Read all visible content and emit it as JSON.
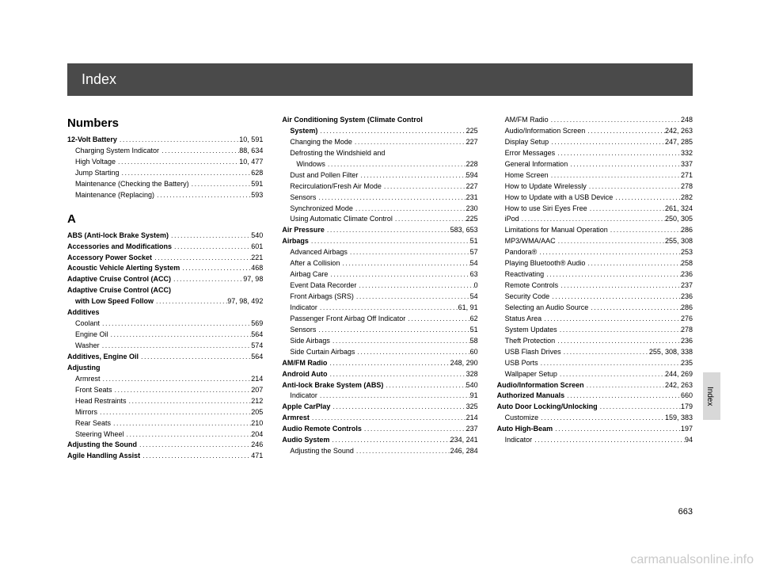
{
  "header": {
    "title": "Index"
  },
  "sideTab": "Index",
  "pageNumber": "663",
  "watermark": "carmanualsonline.info",
  "columns": [
    {
      "blocks": [
        {
          "heading": "Numbers",
          "entries": [
            {
              "label": "12-Volt Battery",
              "bold": true,
              "sub": false,
              "pages": "10, 591"
            },
            {
              "label": "Charging System Indicator",
              "bold": false,
              "sub": true,
              "pages": "88, 634"
            },
            {
              "label": "High Voltage",
              "bold": false,
              "sub": true,
              "pages": "10, 477"
            },
            {
              "label": "Jump Starting",
              "bold": false,
              "sub": true,
              "pages": "628"
            },
            {
              "label": "Maintenance (Checking the Battery)",
              "bold": false,
              "sub": true,
              "pages": "591"
            },
            {
              "label": "Maintenance (Replacing)",
              "bold": false,
              "sub": true,
              "pages": "593"
            }
          ]
        },
        {
          "heading": "A",
          "entries": [
            {
              "label": "ABS (Anti-lock Brake System)",
              "bold": true,
              "sub": false,
              "pages": "540"
            },
            {
              "label": "Accessories and Modifications",
              "bold": true,
              "sub": false,
              "pages": "601"
            },
            {
              "label": "Accessory Power Socket",
              "bold": true,
              "sub": false,
              "pages": "221"
            },
            {
              "label": "Acoustic Vehicle Alerting System",
              "bold": true,
              "sub": false,
              "pages": "468"
            },
            {
              "label": "Adaptive Cruise Control (ACC)",
              "bold": true,
              "sub": false,
              "pages": "97, 98"
            },
            {
              "label": "Adaptive Cruise Control (ACC)",
              "bold": true,
              "sub": false,
              "pages": "",
              "noDots": true
            },
            {
              "label": "with Low Speed Follow",
              "bold": true,
              "sub": true,
              "pages": "97, 98, 492"
            },
            {
              "label": "Additives",
              "bold": true,
              "sub": false,
              "pages": "",
              "noDots": true
            },
            {
              "label": "Coolant",
              "bold": false,
              "sub": true,
              "pages": "569"
            },
            {
              "label": "Engine Oil",
              "bold": false,
              "sub": true,
              "pages": "564"
            },
            {
              "label": "Washer",
              "bold": false,
              "sub": true,
              "pages": "574"
            },
            {
              "label": "Additives, Engine Oil",
              "bold": true,
              "sub": false,
              "pages": "564"
            },
            {
              "label": "Adjusting",
              "bold": true,
              "sub": false,
              "pages": "",
              "noDots": true
            },
            {
              "label": "Armrest",
              "bold": false,
              "sub": true,
              "pages": "214"
            },
            {
              "label": "Front Seats",
              "bold": false,
              "sub": true,
              "pages": "207"
            },
            {
              "label": "Head Restraints",
              "bold": false,
              "sub": true,
              "pages": "212"
            },
            {
              "label": "Mirrors",
              "bold": false,
              "sub": true,
              "pages": "205"
            },
            {
              "label": "Rear Seats",
              "bold": false,
              "sub": true,
              "pages": "210"
            },
            {
              "label": "Steering Wheel",
              "bold": false,
              "sub": true,
              "pages": "204"
            },
            {
              "label": "Adjusting the Sound",
              "bold": true,
              "sub": false,
              "pages": "246"
            },
            {
              "label": "Agile Handling Assist",
              "bold": true,
              "sub": false,
              "pages": "471"
            }
          ]
        }
      ]
    },
    {
      "blocks": [
        {
          "entries": [
            {
              "label": "Air Conditioning System (Climate Control",
              "bold": true,
              "sub": false,
              "pages": "",
              "noDots": true
            },
            {
              "label": "System)",
              "bold": true,
              "sub": true,
              "pages": "225"
            },
            {
              "label": "Changing the Mode",
              "bold": false,
              "sub": true,
              "pages": "227"
            },
            {
              "label": "Defrosting the Windshield and",
              "bold": false,
              "sub": true,
              "pages": "",
              "noDots": true
            },
            {
              "label": "Windows",
              "bold": false,
              "sub": true,
              "pages": "228",
              "extraIndent": true
            },
            {
              "label": "Dust and Pollen Filter",
              "bold": false,
              "sub": true,
              "pages": "594"
            },
            {
              "label": "Recirculation/Fresh Air Mode",
              "bold": false,
              "sub": true,
              "pages": "227"
            },
            {
              "label": "Sensors",
              "bold": false,
              "sub": true,
              "pages": "231"
            },
            {
              "label": "Synchronized Mode",
              "bold": false,
              "sub": true,
              "pages": "230"
            },
            {
              "label": "Using Automatic Climate Control",
              "bold": false,
              "sub": true,
              "pages": "225"
            },
            {
              "label": "Air Pressure",
              "bold": true,
              "sub": false,
              "pages": "583, 653"
            },
            {
              "label": "Airbags",
              "bold": true,
              "sub": false,
              "pages": "51"
            },
            {
              "label": "Advanced Airbags",
              "bold": false,
              "sub": true,
              "pages": "57"
            },
            {
              "label": "After a Collision",
              "bold": false,
              "sub": true,
              "pages": "54"
            },
            {
              "label": "Airbag Care",
              "bold": false,
              "sub": true,
              "pages": "63"
            },
            {
              "label": "Event Data Recorder",
              "bold": false,
              "sub": true,
              "pages": "0"
            },
            {
              "label": "Front Airbags (SRS)",
              "bold": false,
              "sub": true,
              "pages": "54"
            },
            {
              "label": "Indicator",
              "bold": false,
              "sub": true,
              "pages": "61, 91"
            },
            {
              "label": "Passenger Front Airbag Off Indicator",
              "bold": false,
              "sub": true,
              "pages": "62"
            },
            {
              "label": "Sensors",
              "bold": false,
              "sub": true,
              "pages": "51"
            },
            {
              "label": "Side Airbags",
              "bold": false,
              "sub": true,
              "pages": "58"
            },
            {
              "label": "Side Curtain Airbags",
              "bold": false,
              "sub": true,
              "pages": "60"
            },
            {
              "label": "AM/FM Radio",
              "bold": true,
              "sub": false,
              "pages": "248, 290"
            },
            {
              "label": "Android Auto",
              "bold": true,
              "sub": false,
              "pages": "328"
            },
            {
              "label": "Anti-lock Brake System (ABS)",
              "bold": true,
              "sub": false,
              "pages": "540"
            },
            {
              "label": "Indicator",
              "bold": false,
              "sub": true,
              "pages": "91"
            },
            {
              "label": "Apple CarPlay",
              "bold": true,
              "sub": false,
              "pages": "325"
            },
            {
              "label": "Armrest",
              "bold": true,
              "sub": false,
              "pages": "214"
            },
            {
              "label": "Audio Remote Controls",
              "bold": true,
              "sub": false,
              "pages": "237"
            },
            {
              "label": "Audio System",
              "bold": true,
              "sub": false,
              "pages": "234, 241"
            },
            {
              "label": "Adjusting the Sound",
              "bold": false,
              "sub": true,
              "pages": "246, 284"
            }
          ]
        }
      ]
    },
    {
      "blocks": [
        {
          "entries": [
            {
              "label": "AM/FM Radio",
              "bold": false,
              "sub": true,
              "pages": "248"
            },
            {
              "label": "Audio/Information Screen",
              "bold": false,
              "sub": true,
              "pages": "242, 263"
            },
            {
              "label": "Display Setup",
              "bold": false,
              "sub": true,
              "pages": "247, 285"
            },
            {
              "label": "Error Messages",
              "bold": false,
              "sub": true,
              "pages": "332"
            },
            {
              "label": "General Information",
              "bold": false,
              "sub": true,
              "pages": "337"
            },
            {
              "label": "Home Screen",
              "bold": false,
              "sub": true,
              "pages": "271"
            },
            {
              "label": "How to Update Wirelessly",
              "bold": false,
              "sub": true,
              "pages": "278"
            },
            {
              "label": "How to Update with a USB Device",
              "bold": false,
              "sub": true,
              "pages": "282"
            },
            {
              "label": "How to use Siri Eyes Free",
              "bold": false,
              "sub": true,
              "pages": "261, 324"
            },
            {
              "label": "iPod",
              "bold": false,
              "sub": true,
              "pages": "250, 305"
            },
            {
              "label": "Limitations for Manual Operation",
              "bold": false,
              "sub": true,
              "pages": "286"
            },
            {
              "label": "MP3/WMA/AAC",
              "bold": false,
              "sub": true,
              "pages": "255, 308"
            },
            {
              "label": "Pandora®",
              "bold": false,
              "sub": true,
              "pages": "253"
            },
            {
              "label": "Playing Bluetooth® Audio",
              "bold": false,
              "sub": true,
              "pages": "258",
              "italic": "Bluetooth"
            },
            {
              "label": "Reactivating",
              "bold": false,
              "sub": true,
              "pages": "236"
            },
            {
              "label": "Remote Controls",
              "bold": false,
              "sub": true,
              "pages": "237"
            },
            {
              "label": "Security Code",
              "bold": false,
              "sub": true,
              "pages": "236"
            },
            {
              "label": "Selecting an Audio Source",
              "bold": false,
              "sub": true,
              "pages": "286"
            },
            {
              "label": "Status Area",
              "bold": false,
              "sub": true,
              "pages": "276"
            },
            {
              "label": "System Updates",
              "bold": false,
              "sub": true,
              "pages": "278"
            },
            {
              "label": "Theft Protection",
              "bold": false,
              "sub": true,
              "pages": "236"
            },
            {
              "label": "USB Flash Drives",
              "bold": false,
              "sub": true,
              "pages": "255, 308, 338"
            },
            {
              "label": "USB Ports",
              "bold": false,
              "sub": true,
              "pages": "235"
            },
            {
              "label": "Wallpaper Setup",
              "bold": false,
              "sub": true,
              "pages": "244, 269"
            },
            {
              "label": "Audio/Information Screen",
              "bold": true,
              "sub": false,
              "pages": "242, 263"
            },
            {
              "label": "Authorized Manuals",
              "bold": true,
              "sub": false,
              "pages": "660"
            },
            {
              "label": "Auto Door Locking/Unlocking",
              "bold": true,
              "sub": false,
              "pages": "179"
            },
            {
              "label": "Customize",
              "bold": false,
              "sub": true,
              "pages": "159, 383"
            },
            {
              "label": "Auto High-Beam",
              "bold": true,
              "sub": false,
              "pages": "197"
            },
            {
              "label": "Indicator",
              "bold": false,
              "sub": true,
              "pages": "94"
            }
          ]
        }
      ]
    }
  ]
}
